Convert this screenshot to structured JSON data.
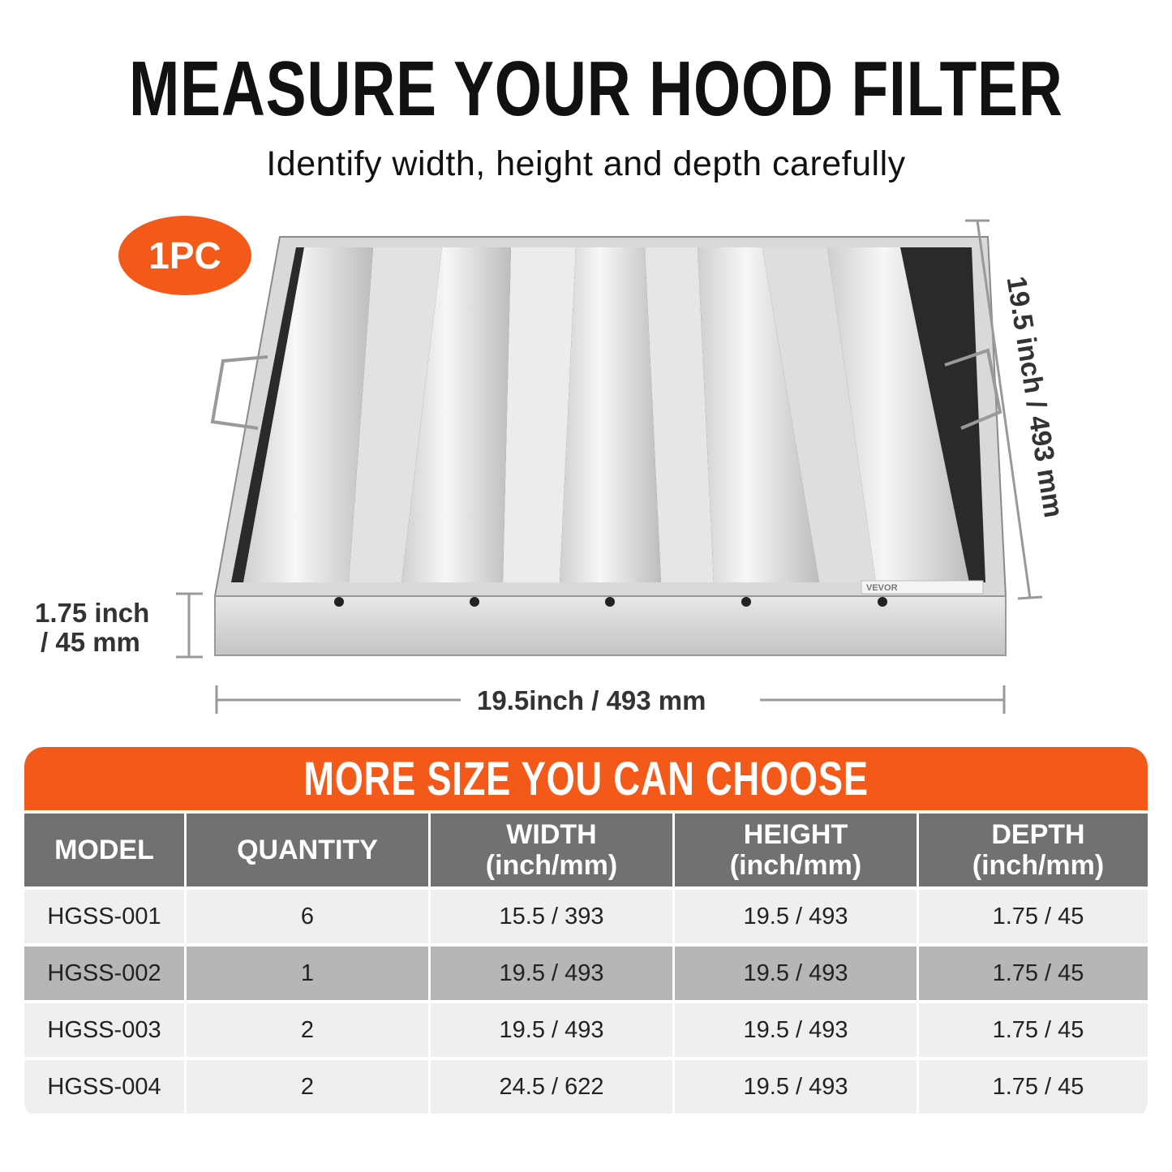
{
  "header": {
    "title": "MEASURE YOUR HOOD FILTER",
    "subtitle": "Identify width, height and depth carefully"
  },
  "badge": "1PC",
  "dimensions": {
    "height": "19.5 inch / 493 mm",
    "width": "19.5inch  / 493 mm",
    "depth_line1": "1.75 inch",
    "depth_line2": "/ 45 mm"
  },
  "product_label": "VEVOR",
  "colors": {
    "accent": "#f35a1a",
    "header_gray": "#717171",
    "row_light": "#efefef",
    "row_dark": "#b6b6b6"
  },
  "table": {
    "title": "MORE SIZE YOU CAN CHOOSE",
    "headers": [
      {
        "l1": "MODEL",
        "l2": ""
      },
      {
        "l1": "QUANTITY",
        "l2": ""
      },
      {
        "l1": "WIDTH",
        "l2": "(inch/mm)"
      },
      {
        "l1": "HEIGHT",
        "l2": "(inch/mm)"
      },
      {
        "l1": "DEPTH",
        "l2": "(inch/mm)"
      }
    ],
    "rows": [
      [
        "HGSS-001",
        "6",
        "15.5 / 393",
        "19.5 / 493",
        "1.75 / 45"
      ],
      [
        "HGSS-002",
        "1",
        "19.5 / 493",
        "19.5 / 493",
        "1.75 / 45"
      ],
      [
        "HGSS-003",
        "2",
        "19.5 / 493",
        "19.5 / 493",
        "1.75 / 45"
      ],
      [
        "HGSS-004",
        "2",
        "24.5 / 622",
        "19.5 / 493",
        "1.75 / 45"
      ]
    ]
  }
}
